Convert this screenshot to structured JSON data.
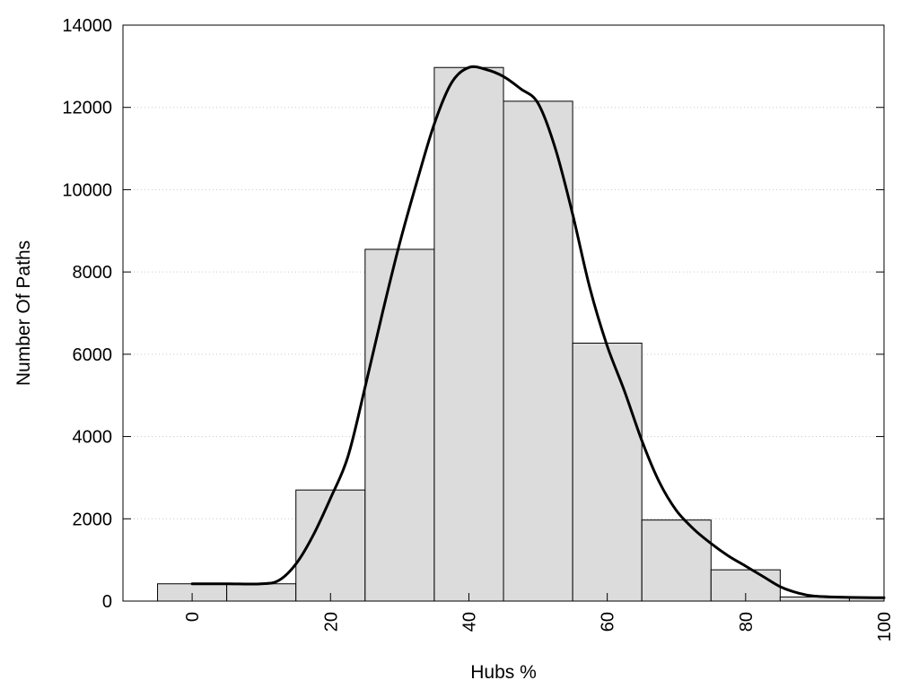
{
  "chart_data": {
    "type": "bar",
    "title": "",
    "xlabel": "Hubs %",
    "ylabel": "Number Of Paths",
    "xlim": [
      -10,
      100
    ],
    "ylim": [
      0,
      14000
    ],
    "x_ticks": [
      0,
      20,
      40,
      60,
      80,
      100
    ],
    "y_ticks": [
      0,
      2000,
      4000,
      6000,
      8000,
      10000,
      12000,
      14000
    ],
    "grid": "horizontal-dotted",
    "bin_width": 10,
    "bars": [
      {
        "x": 0,
        "value": 420
      },
      {
        "x": 10,
        "value": 420
      },
      {
        "x": 20,
        "value": 2700
      },
      {
        "x": 30,
        "value": 8550
      },
      {
        "x": 40,
        "value": 12970
      },
      {
        "x": 50,
        "value": 12150
      },
      {
        "x": 60,
        "value": 6270
      },
      {
        "x": 70,
        "value": 1970
      },
      {
        "x": 80,
        "value": 760
      },
      {
        "x": 90,
        "value": 100
      },
      {
        "x": 100,
        "value": 80
      }
    ],
    "curve": {
      "x": [
        0,
        5,
        10,
        12.5,
        15,
        17.5,
        20,
        22.5,
        25,
        27.5,
        30,
        32.5,
        35,
        37.5,
        40,
        42.5,
        45,
        47.5,
        50,
        52.5,
        55,
        57.5,
        60,
        62.5,
        65,
        67.5,
        70,
        72.5,
        75,
        77.5,
        80,
        82.5,
        85,
        87.5,
        90,
        95,
        100
      ],
      "y": [
        420,
        420,
        420,
        500,
        900,
        1600,
        2500,
        3500,
        5200,
        7000,
        8700,
        10200,
        11600,
        12600,
        12970,
        12920,
        12750,
        12450,
        12100,
        11000,
        9400,
        7600,
        6200,
        5100,
        3900,
        2900,
        2200,
        1750,
        1400,
        1100,
        850,
        600,
        350,
        200,
        120,
        90,
        80
      ]
    },
    "colors": {
      "bar_fill": "#dcdcdc",
      "bar_stroke": "#000000",
      "curve": "#000000",
      "grid": "#c8c8c8"
    }
  }
}
